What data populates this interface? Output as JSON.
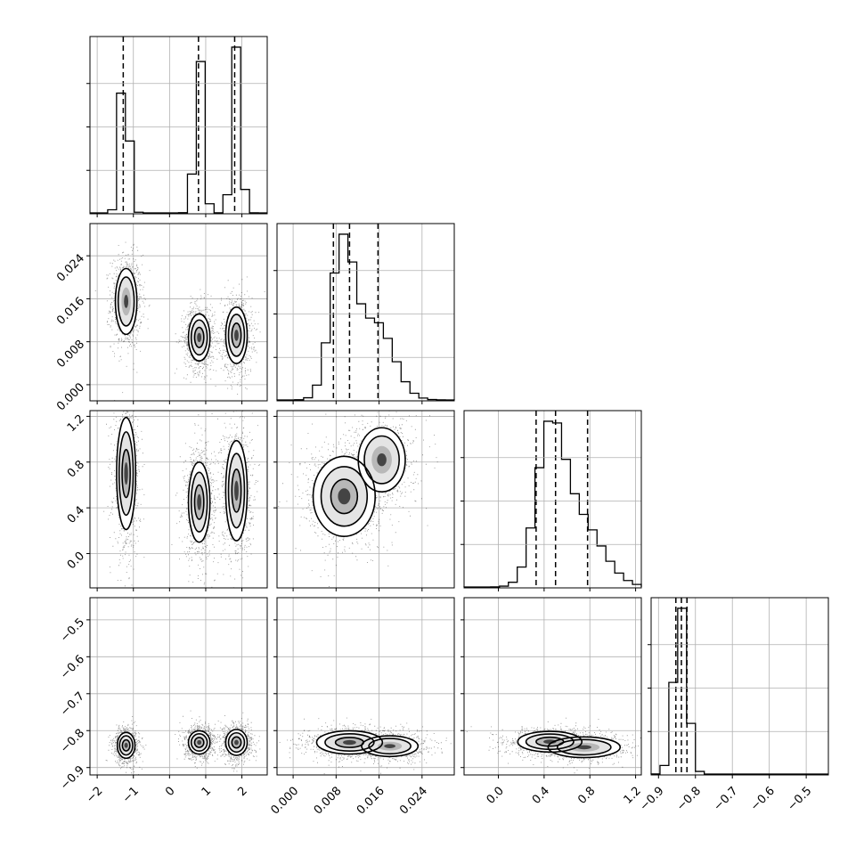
{
  "chart_data": {
    "type": "corner",
    "grid": true,
    "colors": {
      "line": "#000000",
      "background": "#ffffff",
      "grid": "#b0b0b0",
      "scatter": "#000000"
    },
    "params": [
      {
        "range": [
          -2.2,
          2.7
        ],
        "quantiles": [
          -1.28,
          0.8,
          1.8
        ],
        "ticks": [
          -2,
          -1,
          0,
          1,
          2
        ],
        "tick_labels": [
          "−2",
          "−1",
          "0",
          "1",
          "2"
        ],
        "peaks": [
          {
            "mu": -1.25,
            "sigma": 0.12,
            "w": 0.33
          },
          {
            "mu": 0.82,
            "sigma": 0.12,
            "w": 0.33
          },
          {
            "mu": 1.85,
            "sigma": 0.12,
            "w": 0.34
          }
        ]
      },
      {
        "range": [
          -0.003,
          0.03
        ],
        "quantiles": [
          0.0075,
          0.0105,
          0.0158
        ],
        "ticks": [
          0.0,
          0.008,
          0.016,
          0.024
        ],
        "tick_labels": [
          "0.000",
          "0.008",
          "0.016",
          "0.024"
        ],
        "peaks": [
          {
            "mu": 0.0092,
            "sigma": 0.0022,
            "w": 0.58
          },
          {
            "mu": 0.0155,
            "sigma": 0.0032,
            "w": 0.42
          }
        ]
      },
      {
        "range": [
          -0.3,
          1.25
        ],
        "quantiles": [
          0.33,
          0.5,
          0.78
        ],
        "ticks": [
          0.0,
          0.4,
          0.8,
          1.2
        ],
        "tick_labels": [
          "0.0",
          "0.4",
          "0.8",
          "1.2"
        ],
        "peaks": [
          {
            "mu": 0.45,
            "sigma": 0.12,
            "w": 0.55
          },
          {
            "mu": 0.7,
            "sigma": 0.2,
            "w": 0.45
          }
        ]
      },
      {
        "range": [
          -0.92,
          -0.44
        ],
        "quantiles": [
          -0.853,
          -0.838,
          -0.823
        ],
        "ticks": [
          -0.9,
          -0.8,
          -0.7,
          -0.6,
          -0.5
        ],
        "tick_labels": [
          "−0.9",
          "−0.8",
          "−0.7",
          "−0.6",
          "−0.5"
        ],
        "peaks": [
          {
            "mu": -0.84,
            "sigma": 0.018,
            "w": 1.0
          }
        ]
      }
    ],
    "pairs": [
      {
        "row": 1,
        "col": 0,
        "blobs": [
          {
            "cx": -1.2,
            "cy": 0.0155,
            "sx": 0.17,
            "sy": 0.0035,
            "levels": [
              1,
              0.6
            ]
          },
          {
            "cx": 0.82,
            "cy": 0.0088,
            "sx": 0.17,
            "sy": 0.0025,
            "levels": [
              1,
              0.6,
              0.25
            ]
          },
          {
            "cx": 1.85,
            "cy": 0.0092,
            "sx": 0.17,
            "sy": 0.003,
            "levels": [
              1,
              0.6,
              0.25
            ]
          }
        ]
      },
      {
        "row": 2,
        "col": 0,
        "blobs": [
          {
            "cx": -1.2,
            "cy": 0.7,
            "sx": 0.15,
            "sy": 0.28,
            "levels": [
              1,
              0.6,
              0.2
            ]
          },
          {
            "cx": 0.82,
            "cy": 0.45,
            "sx": 0.17,
            "sy": 0.2,
            "levels": [
              1,
              0.6,
              0.25
            ]
          },
          {
            "cx": 1.85,
            "cy": 0.55,
            "sx": 0.17,
            "sy": 0.25,
            "levels": [
              1,
              0.6,
              0.25
            ]
          }
        ]
      },
      {
        "row": 2,
        "col": 1,
        "blobs": [
          {
            "cx": 0.0095,
            "cy": 0.5,
            "sx": 0.0033,
            "sy": 0.2,
            "levels": [
              1,
              0.6,
              0.25
            ]
          },
          {
            "cx": 0.0165,
            "cy": 0.82,
            "sx": 0.0025,
            "sy": 0.16,
            "levels": [
              0.8,
              0.45
            ]
          }
        ]
      },
      {
        "row": 3,
        "col": 0,
        "blobs": [
          {
            "cx": -1.2,
            "cy": -0.84,
            "sx": 0.14,
            "sy": 0.02,
            "levels": [
              1,
              0.6,
              0.25
            ]
          },
          {
            "cx": 0.82,
            "cy": -0.832,
            "sx": 0.17,
            "sy": 0.018,
            "levels": [
              1,
              0.6,
              0.25
            ]
          },
          {
            "cx": 1.85,
            "cy": -0.832,
            "sx": 0.17,
            "sy": 0.02,
            "levels": [
              1,
              0.6,
              0.25
            ]
          }
        ]
      },
      {
        "row": 3,
        "col": 1,
        "blobs": [
          {
            "cx": 0.0105,
            "cy": -0.832,
            "sx": 0.0035,
            "sy": 0.018,
            "levels": [
              1,
              0.6,
              0.25
            ]
          },
          {
            "cx": 0.018,
            "cy": -0.842,
            "sx": 0.003,
            "sy": 0.016,
            "levels": [
              0.8,
              0.4
            ]
          }
        ]
      },
      {
        "row": 3,
        "col": 2,
        "blobs": [
          {
            "cx": 0.45,
            "cy": -0.83,
            "sx": 0.16,
            "sy": 0.016,
            "levels": [
              1,
              0.6,
              0.25
            ]
          },
          {
            "cx": 0.75,
            "cy": -0.845,
            "sx": 0.18,
            "sy": 0.016,
            "levels": [
              0.8,
              0.45
            ]
          }
        ]
      }
    ]
  }
}
